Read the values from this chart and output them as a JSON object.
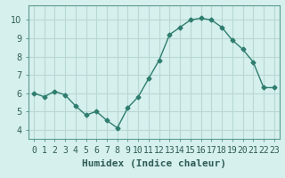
{
  "x": [
    0,
    1,
    2,
    3,
    4,
    5,
    6,
    7,
    8,
    9,
    10,
    11,
    12,
    13,
    14,
    15,
    16,
    17,
    18,
    19,
    20,
    21,
    22,
    23
  ],
  "y": [
    6.0,
    5.8,
    6.1,
    5.9,
    5.3,
    4.8,
    5.0,
    4.5,
    4.1,
    5.2,
    5.8,
    6.8,
    7.8,
    9.2,
    9.6,
    10.0,
    10.1,
    10.0,
    9.6,
    8.9,
    8.4,
    7.7,
    6.3,
    6.3
  ],
  "xlabel": "Humidex (Indice chaleur)",
  "ylim": [
    3.5,
    10.8
  ],
  "xlim": [
    -0.5,
    23.5
  ],
  "yticks": [
    4,
    5,
    6,
    7,
    8,
    9,
    10
  ],
  "xticks": [
    0,
    1,
    2,
    3,
    4,
    5,
    6,
    7,
    8,
    9,
    10,
    11,
    12,
    13,
    14,
    15,
    16,
    17,
    18,
    19,
    20,
    21,
    22,
    23
  ],
  "xtick_labels": [
    "0",
    "1",
    "2",
    "3",
    "4",
    "5",
    "6",
    "7",
    "8",
    "9",
    "10",
    "11",
    "12",
    "13",
    "14",
    "15",
    "16",
    "17",
    "18",
    "19",
    "20",
    "21",
    "22",
    "23"
  ],
  "line_color": "#2e7d6e",
  "marker": "D",
  "marker_size": 2.5,
  "bg_color": "#d6f0ee",
  "grid_color": "#b8d8d4",
  "xlabel_fontsize": 8,
  "tick_fontsize": 7,
  "line_width": 1.0
}
